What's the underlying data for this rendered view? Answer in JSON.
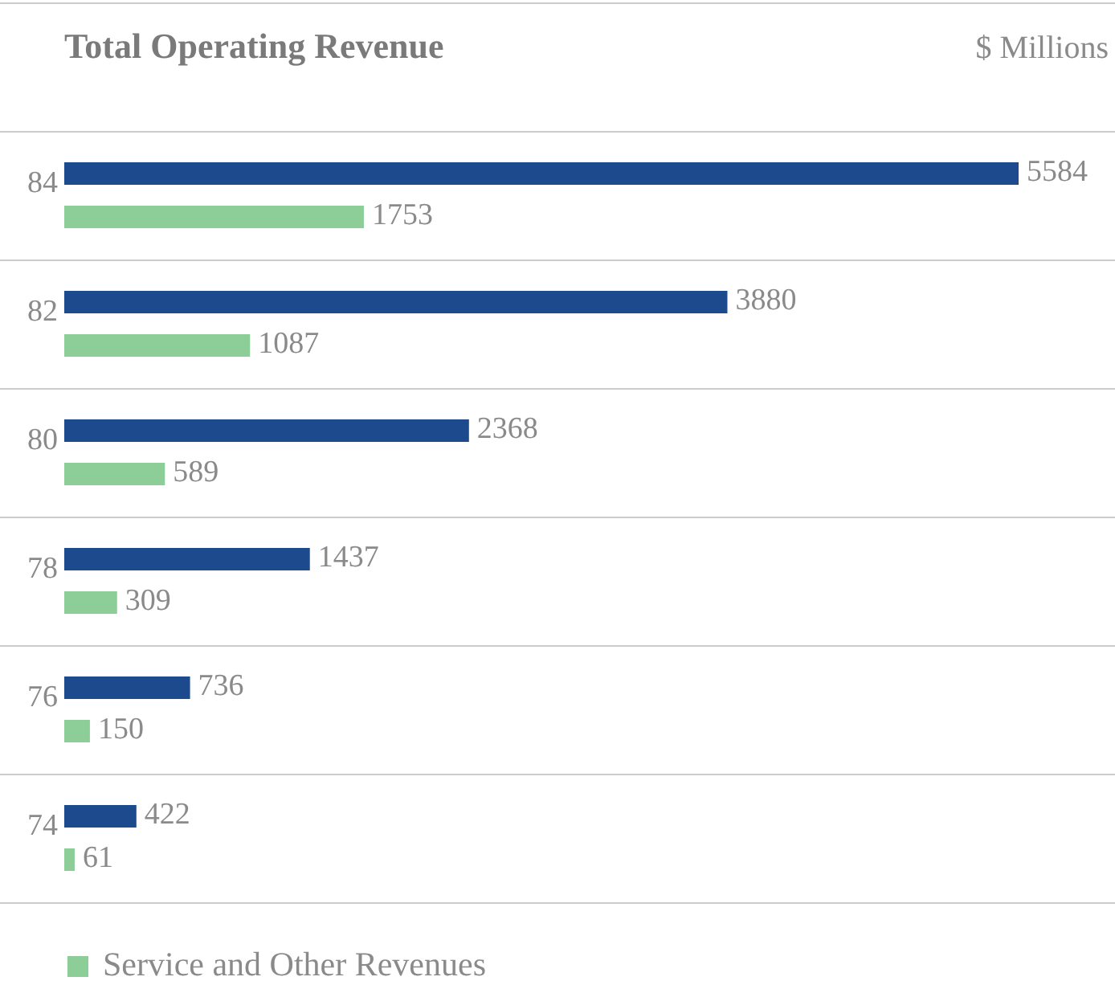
{
  "chart_data": {
    "type": "bar",
    "orientation": "horizontal",
    "title": "Total Operating Revenue",
    "subtitle": "$ Millions",
    "categories": [
      "84",
      "82",
      "80",
      "78",
      "76",
      "74"
    ],
    "series": [
      {
        "color": "#1d4a8c",
        "values": [
          5584,
          3880,
          2368,
          1437,
          736,
          422
        ]
      },
      {
        "name": "Service and Other Revenues",
        "color": "#8dcd98",
        "values": [
          1753,
          1087,
          589,
          309,
          150,
          61
        ]
      }
    ],
    "data_labels": true,
    "legend": "bottom left"
  }
}
